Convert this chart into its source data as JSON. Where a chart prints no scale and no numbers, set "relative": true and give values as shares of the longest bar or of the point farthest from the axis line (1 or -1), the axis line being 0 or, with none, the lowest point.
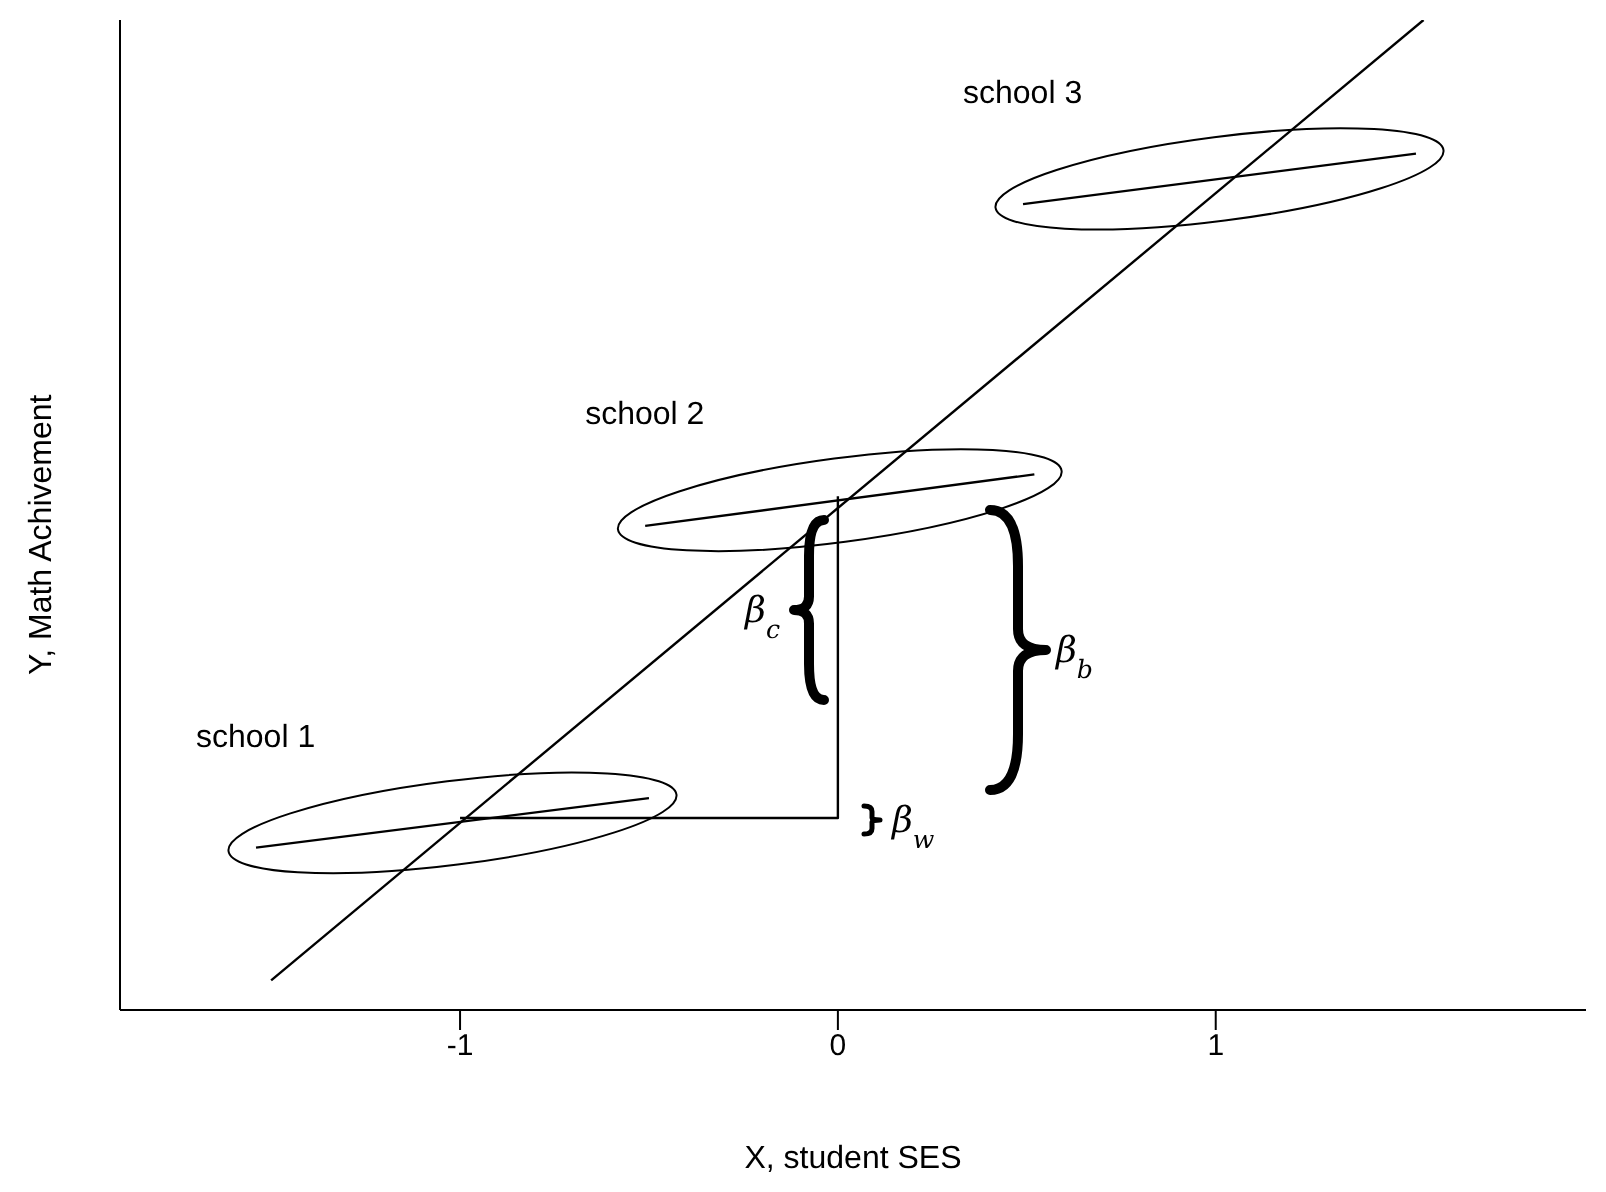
{
  "chart_data": {
    "type": "line",
    "relative": true,
    "xlabel": "X, student SES",
    "ylabel": "Y, Math Achivement",
    "xlim": [
      -1.9,
      1.98
    ],
    "xticks": [
      -1,
      0,
      1
    ],
    "marker": "none",
    "line_style": "solid",
    "series": [
      {
        "color": "#000000",
        "x": [
          -1.5,
          1.55
        ],
        "values": [
          0.03,
          1.0
        ]
      },
      {
        "name": "school 1",
        "color": "#000000",
        "x": [
          -1.54,
          -0.5
        ],
        "values": [
          0.164,
          0.214
        ]
      },
      {
        "name": "school 2",
        "color": "#000000",
        "x": [
          -0.51,
          0.52
        ],
        "values": [
          0.489,
          0.541
        ]
      },
      {
        "name": "school 3",
        "color": "#000000",
        "x": [
          0.49,
          1.53
        ],
        "values": [
          0.814,
          0.865
        ]
      },
      {
        "color": "#000000",
        "x": [
          -1,
          0,
          0
        ],
        "values": [
          0.194,
          0.194,
          0.519
        ]
      }
    ],
    "annotations": [
      "β$_{c}$",
      "β$_{b}$",
      "β$_{w}$"
    ]
  }
}
